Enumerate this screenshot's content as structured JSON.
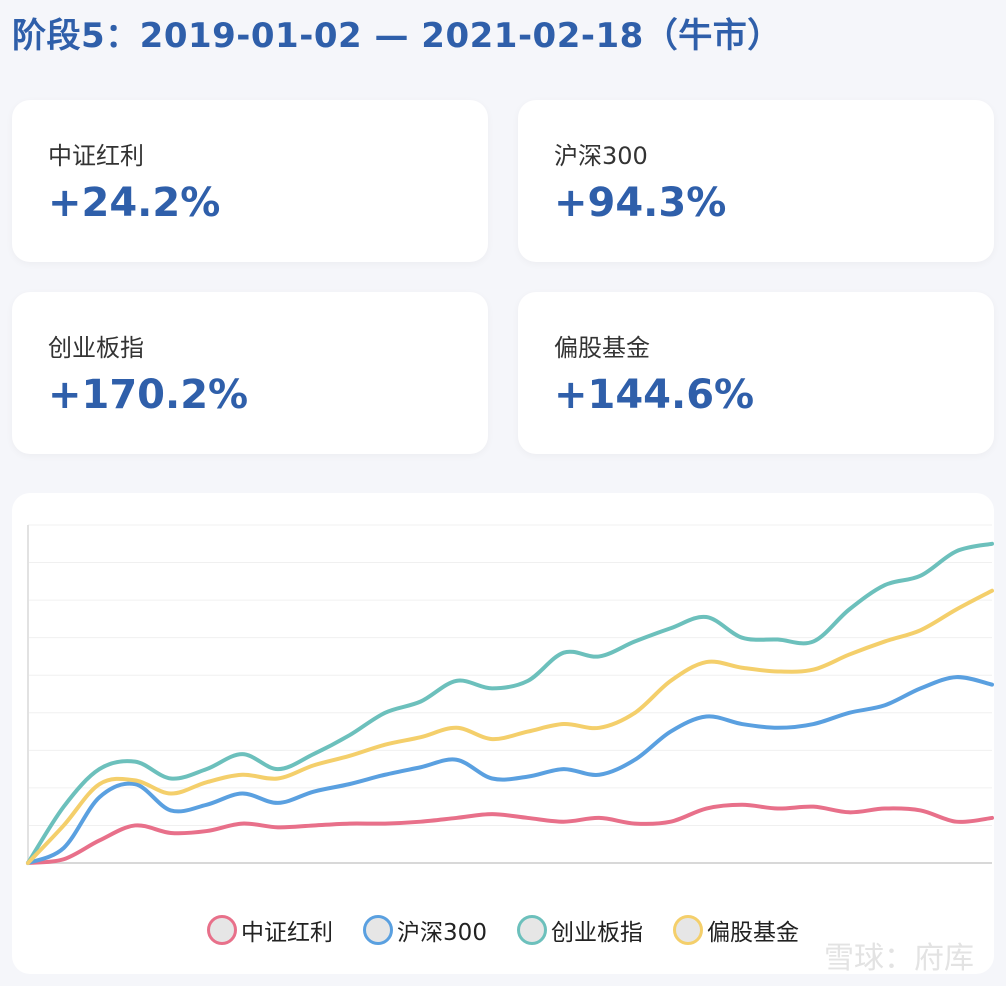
{
  "title": "阶段5：2019-01-02 — 2021-02-18（牛市）",
  "cards": [
    {
      "label": "中证红利",
      "value": "+24.2%"
    },
    {
      "label": "沪深300",
      "value": "+94.3%"
    },
    {
      "label": "创业板指",
      "value": "+170.2%"
    },
    {
      "label": "偏股基金",
      "value": "+144.6%"
    }
  ],
  "watermark": "雪球：府库",
  "chart_data": {
    "type": "line",
    "ylim": [
      0,
      180
    ],
    "grid": true,
    "legend_position": "bottom",
    "series": [
      {
        "name": "中证红利",
        "color": "#e8708a",
        "values": [
          0,
          2,
          12,
          20,
          16,
          17,
          21,
          19,
          20,
          21,
          21,
          22,
          24,
          26,
          24,
          22,
          24,
          21,
          22,
          29,
          31,
          29,
          30,
          27,
          29,
          28,
          22,
          24
        ]
      },
      {
        "name": "沪深300",
        "color": "#5aa0e0",
        "values": [
          0,
          8,
          35,
          42,
          28,
          31,
          37,
          32,
          38,
          42,
          47,
          51,
          55,
          45,
          46,
          50,
          47,
          55,
          70,
          78,
          74,
          72,
          74,
          80,
          84,
          93,
          99,
          95
        ]
      },
      {
        "name": "创业板指",
        "color": "#6cc0bc",
        "values": [
          0,
          30,
          50,
          54,
          45,
          50,
          58,
          50,
          58,
          68,
          80,
          86,
          97,
          93,
          97,
          112,
          110,
          118,
          125,
          131,
          120,
          119,
          118,
          135,
          148,
          153,
          166,
          170
        ]
      },
      {
        "name": "偏股基金",
        "color": "#f4cf6b",
        "values": [
          0,
          20,
          42,
          44,
          37,
          43,
          47,
          45,
          52,
          57,
          63,
          67,
          72,
          66,
          70,
          74,
          72,
          80,
          97,
          107,
          104,
          102,
          103,
          111,
          118,
          124,
          135,
          145
        ]
      }
    ]
  }
}
